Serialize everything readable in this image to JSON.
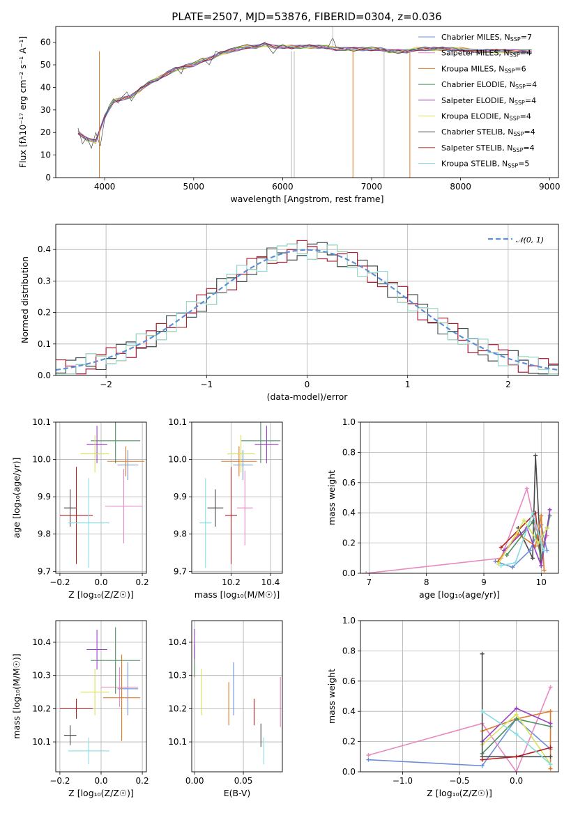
{
  "title": "PLATE=2507, MJD=53876, FIBERID=0304, z=0.036",
  "colors": {
    "chabrier_miles": "#6b8fd6",
    "salpeter_miles": "#e889c0",
    "kroupa_miles": "#e07a27",
    "chabrier_elodie": "#4f8f62",
    "salpeter_elodie": "#9b3fc4",
    "kroupa_elodie": "#d7e25a",
    "chabrier_stelib": "#4a4a4a",
    "salpeter_stelib": "#b21f1f",
    "kroupa_stelib": "#86dce3",
    "gauss": "#5b8fd6"
  },
  "chart_data": [
    {
      "id": "spectrum",
      "type": "line",
      "xlabel": "wavelength [Angstrom, rest frame]",
      "ylabel": "Flux [fλ10⁻¹⁷ erg cm⁻² s⁻¹ A⁻¹]",
      "xlim": [
        3450,
        9100
      ],
      "ylim": [
        0,
        67
      ],
      "xticks": [
        4000,
        5000,
        6000,
        7000,
        8000,
        9000
      ],
      "yticks": [
        0,
        10,
        20,
        30,
        40,
        50,
        60
      ],
      "grid": false,
      "legend_position": "top-right",
      "legend": [
        {
          "pre": "Chabrier MILES, N",
          "sub": "SSP",
          "post": "=7",
          "color": "chabrier_miles"
        },
        {
          "pre": "Salpeter MILES, N",
          "sub": "SSP",
          "post": "=4",
          "color": "salpeter_miles"
        },
        {
          "pre": "Kroupa MILES, N",
          "sub": "SSP",
          "post": "=6",
          "color": "kroupa_miles"
        },
        {
          "pre": "Chabrier ELODIE, N",
          "sub": "SSP",
          "post": "=4",
          "color": "chabrier_elodie"
        },
        {
          "pre": "Salpeter ELODIE, N",
          "sub": "SSP",
          "post": "=4",
          "color": "salpeter_elodie"
        },
        {
          "pre": "Kroupa ELODIE, N",
          "sub": "SSP",
          "post": "=4",
          "color": "kroupa_elodie"
        },
        {
          "pre": "Chabrier STELIB, N",
          "sub": "SSP",
          "post": "=4",
          "color": "chabrier_stelib"
        },
        {
          "pre": "Salpeter STELIB, N",
          "sub": "SSP",
          "post": "=4",
          "color": "salpeter_stelib"
        },
        {
          "pre": "Kroupa STELIB, N",
          "sub": "SSP",
          "post": "=5",
          "color": "kroupa_stelib"
        }
      ],
      "data_spectrum": {
        "x": [
          3700,
          3750,
          3800,
          3850,
          3900,
          3950,
          4000,
          4050,
          4100,
          4150,
          4200,
          4250,
          4300,
          4400,
          4500,
          4600,
          4700,
          4800,
          4860,
          4900,
          5000,
          5100,
          5175,
          5250,
          5300,
          5400,
          5500,
          5600,
          5700,
          5800,
          5893,
          5950,
          6000,
          6100,
          6200,
          6300,
          6400,
          6500,
          6563,
          6600,
          6700,
          6800,
          6900,
          7000,
          7100,
          7200,
          7300,
          7400,
          7500,
          7600,
          7700,
          7800,
          7900,
          8000,
          8100,
          8200,
          8300,
          8400,
          8500,
          8600,
          8700,
          8800
        ],
        "y": [
          22,
          15,
          18,
          13,
          20,
          14,
          26,
          32,
          35,
          33,
          36,
          38,
          34,
          40,
          42,
          43,
          47,
          49,
          46,
          50,
          51,
          53,
          50,
          56,
          55,
          57,
          58,
          59,
          58,
          60,
          55,
          58,
          59,
          57,
          58,
          59,
          58,
          57,
          62,
          58,
          57,
          56,
          57,
          58,
          57,
          56,
          55,
          56,
          57,
          58,
          57,
          58,
          56,
          57,
          55,
          56,
          57,
          56,
          57,
          55,
          56,
          55
        ]
      },
      "model_spectrum": {
        "x": [
          3700,
          3800,
          3900,
          4000,
          4100,
          4200,
          4300,
          4400,
          4500,
          4600,
          4700,
          4800,
          4900,
          5000,
          5100,
          5200,
          5300,
          5400,
          5500,
          5600,
          5700,
          5800,
          5900,
          6000,
          6100,
          6200,
          6300,
          6400,
          6500,
          6600,
          6700,
          6800,
          6900,
          7000,
          7100,
          7200,
          7300,
          7400,
          7500,
          7600,
          7700,
          7800,
          7900,
          8000,
          8200,
          8400,
          8600,
          8800
        ],
        "y": [
          20,
          17,
          16,
          27,
          34,
          35,
          36,
          39,
          42,
          44,
          46,
          48,
          49,
          50,
          52,
          53,
          55,
          56,
          57,
          58,
          58,
          59,
          58,
          58,
          58,
          58,
          58,
          58,
          58,
          57,
          57,
          57,
          57,
          57,
          57,
          56,
          56,
          56,
          57,
          57,
          57,
          57,
          57,
          57,
          56,
          56,
          56,
          56
        ]
      }
    },
    {
      "id": "residual_hist",
      "type": "histogram",
      "xlabel": "(data-model)/error",
      "ylabel": "Normed distribution",
      "xlim": [
        -2.5,
        2.5
      ],
      "ylim": [
        0,
        0.48
      ],
      "xticks": [
        -2,
        -1,
        0,
        1,
        2
      ],
      "yticks": [
        0.0,
        0.1,
        0.2,
        0.3,
        0.4
      ],
      "grid": true,
      "legend_position": "top-right",
      "gauss_label": "𝒩(0, 1)"
    },
    {
      "id": "age_vs_z",
      "type": "errorbar",
      "xlabel": "Z [log₁₀(Z/Z☉)]",
      "ylabel": "age  [log₁₀(age/yr)]",
      "xlim": [
        -0.22,
        0.22
      ],
      "ylim": [
        9.695,
        10.1
      ],
      "xticks": [
        -0.2,
        0.0,
        0.2
      ],
      "yticks": [
        9.7,
        9.8,
        9.9,
        10.0,
        10.1
      ],
      "grid": true,
      "points": [
        {
          "color": "chabrier_miles",
          "x": 0.13,
          "xe": 0.05,
          "y": 9.985,
          "ye": 0.04
        },
        {
          "color": "salpeter_miles",
          "x": 0.11,
          "xe": 0.09,
          "y": 9.875,
          "ye": 0.1
        },
        {
          "color": "kroupa_miles",
          "x": 0.12,
          "xe": 0.09,
          "y": 9.995,
          "ye": 0.04
        },
        {
          "color": "chabrier_elodie",
          "x": 0.07,
          "xe": 0.12,
          "y": 10.05,
          "ye": 0.06
        },
        {
          "color": "salpeter_elodie",
          "x": -0.02,
          "xe": 0.05,
          "y": 10.04,
          "ye": 0.05
        },
        {
          "color": "kroupa_elodie",
          "x": -0.03,
          "xe": 0.07,
          "y": 10.015,
          "ye": 0.05
        },
        {
          "color": "chabrier_stelib",
          "x": -0.15,
          "xe": 0.03,
          "y": 9.87,
          "ye": 0.05
        },
        {
          "color": "salpeter_stelib",
          "x": -0.12,
          "xe": 0.08,
          "y": 9.85,
          "ye": 0.13
        },
        {
          "color": "kroupa_stelib",
          "x": -0.06,
          "xe": 0.1,
          "y": 9.83,
          "ye": 0.12
        }
      ]
    },
    {
      "id": "age_vs_mass",
      "type": "errorbar",
      "xlabel": "mass [log₁₀(M/M☉)]",
      "ylabel": "",
      "xlim": [
        10.0,
        10.46
      ],
      "ylim": [
        9.695,
        10.1
      ],
      "xticks": [
        10.2,
        10.4
      ],
      "yticks": [
        9.7,
        9.8,
        9.9,
        10.0,
        10.1
      ],
      "grid": true,
      "points": [
        {
          "color": "chabrier_miles",
          "x": 10.26,
          "xe": 0.05,
          "y": 9.985,
          "ye": 0.04
        },
        {
          "color": "salpeter_miles",
          "x": 10.27,
          "xe": 0.04,
          "y": 9.87,
          "ye": 0.1
        },
        {
          "color": "kroupa_miles",
          "x": 10.24,
          "xe": 0.09,
          "y": 9.995,
          "ye": 0.04
        },
        {
          "color": "chabrier_elodie",
          "x": 10.35,
          "xe": 0.1,
          "y": 10.05,
          "ye": 0.06
        },
        {
          "color": "salpeter_elodie",
          "x": 10.38,
          "xe": 0.06,
          "y": 10.04,
          "ye": 0.05
        },
        {
          "color": "kroupa_elodie",
          "x": 10.25,
          "xe": 0.07,
          "y": 10.015,
          "ye": 0.05
        },
        {
          "color": "chabrier_stelib",
          "x": 10.12,
          "xe": 0.04,
          "y": 9.87,
          "ye": 0.05
        },
        {
          "color": "salpeter_stelib",
          "x": 10.2,
          "xe": 0.03,
          "y": 9.85,
          "ye": 0.13
        },
        {
          "color": "kroupa_stelib",
          "x": 10.07,
          "xe": 0.03,
          "y": 9.83,
          "ye": 0.12
        }
      ]
    },
    {
      "id": "mass_weight_age",
      "type": "line",
      "xlabel": "age  [log₁₀(age/yr)]",
      "ylabel": "mass weight",
      "xlim": [
        6.85,
        10.3
      ],
      "ylim": [
        0,
        1.0
      ],
      "xticks": [
        7,
        8,
        9,
        10
      ],
      "yticks": [
        0.0,
        0.2,
        0.4,
        0.6,
        0.8,
        1.0
      ],
      "grid": true,
      "series": [
        {
          "color": "salpeter_miles",
          "x": [
            6.95,
            9.3,
            9.75,
            9.9,
            10.05,
            10.1
          ],
          "y": [
            0.0,
            0.1,
            0.56,
            0.3,
            0.2,
            0.25
          ]
        },
        {
          "color": "salpeter_stelib",
          "x": [
            9.3,
            9.9,
            10.0,
            10.1
          ],
          "y": [
            0.17,
            0.4,
            0.05,
            0.3
          ]
        },
        {
          "color": "chabrier_stelib",
          "x": [
            9.6,
            9.85,
            9.9,
            10.0
          ],
          "y": [
            0.3,
            0.1,
            0.78,
            0.05
          ]
        },
        {
          "color": "chabrier_miles",
          "x": [
            9.2,
            9.5,
            9.8,
            10.0,
            10.1
          ],
          "y": [
            0.08,
            0.04,
            0.15,
            0.32,
            0.15
          ]
        },
        {
          "color": "kroupa_miles",
          "x": [
            9.25,
            9.6,
            9.9,
            10.0,
            10.05
          ],
          "y": [
            0.08,
            0.26,
            0.18,
            0.38,
            0.02
          ]
        },
        {
          "color": "chabrier_elodie",
          "x": [
            9.4,
            9.85,
            10.0,
            10.15
          ],
          "y": [
            0.12,
            0.34,
            0.1,
            0.38
          ]
        },
        {
          "color": "salpeter_elodie",
          "x": [
            9.35,
            9.75,
            10.0,
            10.15
          ],
          "y": [
            0.15,
            0.3,
            0.05,
            0.42
          ]
        },
        {
          "color": "kroupa_elodie",
          "x": [
            9.25,
            9.7,
            9.95,
            10.1
          ],
          "y": [
            0.06,
            0.35,
            0.2,
            0.3
          ]
        },
        {
          "color": "kroupa_stelib",
          "x": [
            9.3,
            9.55,
            9.85,
            10.0,
            10.05
          ],
          "y": [
            0.05,
            0.07,
            0.4,
            0.2,
            0.15
          ]
        }
      ]
    },
    {
      "id": "mass_vs_z",
      "type": "errorbar",
      "xlabel": "Z [log₁₀(Z/Z☉)]",
      "ylabel": "mass [log₁₀(M/M☉)]",
      "xlim": [
        -0.22,
        0.22
      ],
      "ylim": [
        10.01,
        10.465
      ],
      "xticks": [
        -0.2,
        0.0,
        0.2
      ],
      "yticks": [
        10.1,
        10.2,
        10.3,
        10.4
      ],
      "grid": true,
      "points": [
        {
          "color": "chabrier_miles",
          "x": 0.13,
          "xe": 0.05,
          "y": 10.26,
          "ye": 0.08
        },
        {
          "color": "salpeter_miles",
          "x": 0.09,
          "xe": 0.09,
          "y": 10.265,
          "ye": 0.06
        },
        {
          "color": "kroupa_miles",
          "x": 0.1,
          "xe": 0.09,
          "y": 10.233,
          "ye": 0.13
        },
        {
          "color": "chabrier_elodie",
          "x": 0.07,
          "xe": 0.12,
          "y": 10.345,
          "ye": 0.1
        },
        {
          "color": "salpeter_elodie",
          "x": -0.02,
          "xe": 0.05,
          "y": 10.378,
          "ye": 0.06
        },
        {
          "color": "kroupa_elodie",
          "x": -0.03,
          "xe": 0.07,
          "y": 10.25,
          "ye": 0.07
        },
        {
          "color": "chabrier_stelib",
          "x": -0.15,
          "xe": 0.03,
          "y": 10.12,
          "ye": 0.03
        },
        {
          "color": "salpeter_stelib",
          "x": -0.12,
          "xe": 0.08,
          "y": 10.2,
          "ye": 0.03
        },
        {
          "color": "kroupa_stelib",
          "x": -0.06,
          "xe": 0.1,
          "y": 10.073,
          "ye": 0.04
        }
      ]
    },
    {
      "id": "mass_vs_ebv",
      "type": "errorbar",
      "xlabel": "E(B-V)",
      "ylabel": "",
      "xlim": [
        -0.003,
        0.09
      ],
      "ylim": [
        10.01,
        10.465
      ],
      "xticks": [
        0.0,
        0.05
      ],
      "yticks": [
        10.1,
        10.2,
        10.3,
        10.4
      ],
      "grid": true,
      "points": [
        {
          "color": "chabrier_miles",
          "x": 0.04,
          "xe": 0,
          "y": 10.26,
          "ye": 0.08
        },
        {
          "color": "salpeter_miles",
          "x": 0.088,
          "xe": 0,
          "y": 10.22,
          "ye": 0.075
        },
        {
          "color": "kroupa_miles",
          "x": 0.035,
          "xe": 0,
          "y": 10.215,
          "ye": 0.065
        },
        {
          "color": "chabrier_elodie",
          "x": 0.0,
          "xe": 0,
          "y": 10.345,
          "ye": 0.05
        },
        {
          "color": "salpeter_elodie",
          "x": 0.0,
          "xe": 0,
          "y": 10.395,
          "ye": 0.045
        },
        {
          "color": "kroupa_elodie",
          "x": 0.007,
          "xe": 0,
          "y": 10.25,
          "ye": 0.07
        },
        {
          "color": "chabrier_stelib",
          "x": 0.068,
          "xe": 0,
          "y": 10.12,
          "ye": 0.035
        },
        {
          "color": "salpeter_stelib",
          "x": 0.061,
          "xe": 0,
          "y": 10.19,
          "ye": 0.04
        },
        {
          "color": "kroupa_stelib",
          "x": 0.071,
          "xe": 0,
          "y": 10.073,
          "ye": 0.04
        }
      ]
    },
    {
      "id": "mass_weight_z",
      "type": "line",
      "xlabel": "Z [log₁₀(Z/Z☉)]",
      "ylabel": "mass weight",
      "xlim": [
        -1.37,
        0.37
      ],
      "ylim": [
        0,
        1.0
      ],
      "xticks": [
        -1.0,
        -0.5,
        0.0
      ],
      "yticks": [
        0.0,
        0.2,
        0.4,
        0.6,
        0.8,
        1.0
      ],
      "grid": true,
      "series": [
        {
          "color": "chabrier_miles",
          "x": [
            -1.3,
            -0.3,
            0.0,
            0.3
          ],
          "y": [
            0.08,
            0.04,
            0.35,
            0.15
          ]
        },
        {
          "color": "salpeter_miles",
          "x": [
            -1.3,
            -0.3,
            0.0,
            0.3
          ],
          "y": [
            0.11,
            0.32,
            0.0,
            0.56
          ]
        },
        {
          "color": "kroupa_miles",
          "x": [
            -0.3,
            0.0,
            0.3,
            0.3
          ],
          "y": [
            0.27,
            0.35,
            0.4,
            0.02
          ]
        },
        {
          "color": "chabrier_elodie",
          "x": [
            -0.3,
            0.0,
            0.3
          ],
          "y": [
            0.12,
            0.35,
            0.3
          ]
        },
        {
          "color": "salpeter_elodie",
          "x": [
            -0.3,
            0.0,
            0.3
          ],
          "y": [
            0.2,
            0.42,
            0.32
          ]
        },
        {
          "color": "kroupa_elodie",
          "x": [
            -0.3,
            0.0,
            0.3
          ],
          "y": [
            0.18,
            0.38,
            0.05
          ]
        },
        {
          "color": "chabrier_stelib",
          "x": [
            -0.3,
            -0.3,
            0.3
          ],
          "y": [
            0.78,
            0.1,
            0.1
          ]
        },
        {
          "color": "salpeter_stelib",
          "x": [
            -0.3,
            0.0,
            0.3
          ],
          "y": [
            0.08,
            0.1,
            0.16
          ]
        },
        {
          "color": "kroupa_stelib",
          "x": [
            -0.3,
            0.0,
            0.3
          ],
          "y": [
            0.4,
            0.25,
            0.05
          ]
        }
      ]
    }
  ]
}
